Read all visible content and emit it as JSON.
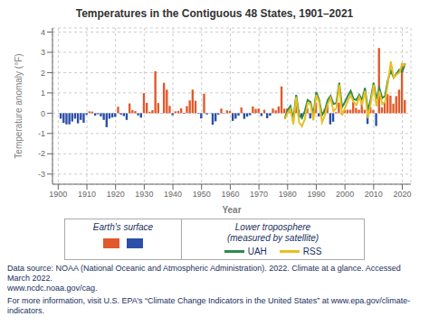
{
  "chart_data": {
    "type": "bar",
    "title": "Temperatures in the Contiguous 48 States, 1901–2021",
    "x_label": "Year",
    "y_label": "Temperature anomaly (°F)",
    "xlim": [
      1898,
      2023
    ],
    "xticks": [
      1900,
      1910,
      1920,
      1930,
      1940,
      1950,
      1960,
      1970,
      1980,
      1990,
      2000,
      2010,
      2020
    ],
    "ylim": [
      -3.5,
      4.2
    ],
    "yticks": [
      -3,
      -2,
      -1,
      0,
      1,
      2,
      3,
      4
    ],
    "grid": true,
    "legend": "bottom",
    "annotations": [
      "Lower troposphere",
      "(measured by satellite)",
      "Data source: NOAA (National Oceanic and Atmospheric Administration). 2022. Climate at a glance. Accessed March 2022.\nwww.ncdc.noaa.gov/cag.",
      "For more information, visit U.S. EPA’s “Climate Change Indicators in the United States” at www.epa.gov/climate-indicators."
    ],
    "series": [
      {
        "name": "Earth's surface",
        "type": "bar",
        "x": [
          1901,
          1902,
          1903,
          1904,
          1905,
          1906,
          1907,
          1908,
          1909,
          1910,
          1911,
          1912,
          1913,
          1914,
          1915,
          1916,
          1917,
          1918,
          1919,
          1920,
          1921,
          1922,
          1923,
          1924,
          1925,
          1926,
          1927,
          1928,
          1929,
          1930,
          1931,
          1932,
          1933,
          1934,
          1935,
          1936,
          1937,
          1938,
          1939,
          1940,
          1941,
          1942,
          1943,
          1944,
          1945,
          1946,
          1947,
          1948,
          1949,
          1950,
          1951,
          1952,
          1953,
          1954,
          1955,
          1956,
          1957,
          1958,
          1959,
          1960,
          1961,
          1962,
          1963,
          1964,
          1965,
          1966,
          1967,
          1968,
          1969,
          1970,
          1971,
          1972,
          1973,
          1974,
          1975,
          1976,
          1977,
          1978,
          1979,
          1980,
          1981,
          1982,
          1983,
          1984,
          1985,
          1986,
          1987,
          1988,
          1989,
          1990,
          1991,
          1992,
          1993,
          1994,
          1995,
          1996,
          1997,
          1998,
          1999,
          2000,
          2001,
          2002,
          2003,
          2004,
          2005,
          2006,
          2007,
          2008,
          2009,
          2010,
          2011,
          2012,
          2013,
          2014,
          2015,
          2016,
          2017,
          2018,
          2019,
          2020,
          2021
        ],
        "values": [
          -0.27,
          -0.48,
          -0.55,
          -0.55,
          -0.41,
          -0.27,
          -0.5,
          -0.33,
          -0.47,
          -0.08,
          0.09,
          0.08,
          -0.12,
          -0.05,
          -0.16,
          -0.33,
          -0.69,
          -0.27,
          -0.21,
          -0.18,
          0.32,
          -0.07,
          -0.14,
          -0.33,
          0.48,
          0.15,
          0.1,
          -0.11,
          -0.22,
          0.99,
          0.51,
          0.07,
          0.15,
          2.07,
          0.5,
          -0.01,
          1.5,
          1.16,
          0.36,
          -0.1,
          0.09,
          0.11,
          0.24,
          -0.03,
          0.35,
          0.63,
          1.16,
          0.61,
          -0.03,
          -0.26,
          0.96,
          -0.06,
          -0.01,
          -0.57,
          -0.4,
          -0.07,
          0.23,
          -0.02,
          0.14,
          0.11,
          -0.38,
          -0.27,
          -0.12,
          0.28,
          -0.28,
          -0.17,
          -0.1,
          0.33,
          0.21,
          0.23,
          -0.14,
          0.17,
          -0.25,
          -0.12,
          0.23,
          0.14,
          0.33,
          1.32,
          0.22,
          0.23,
          0.18,
          -0.27,
          0.56,
          0.15,
          -0.16,
          -0.03,
          0.24,
          -0.26,
          0.2,
          0.51,
          -0.16,
          0.05,
          0.2,
          0.54,
          -0.55,
          -0.42,
          0.05,
          0.52,
          -0.05,
          0.15,
          0.17,
          0.17,
          0.55,
          0.26,
          0.17,
          0.59,
          0.17,
          -0.53,
          0.31,
          0.16,
          -0.63,
          3.21,
          0.29,
          0.52,
          0.94,
          0.87,
          0.47,
          0.84,
          1.16,
          2.45,
          0.65
        ],
        "colors": [
          "#2b4fa8",
          "#2b4fa8",
          "#2b4fa8",
          "#2b4fa8",
          "#2b4fa8",
          "#2b4fa8",
          "#2b4fa8",
          "#2b4fa8",
          "#2b4fa8",
          "#2b4fa8",
          "#e05a2b",
          "#e05a2b",
          "#2b4fa8",
          "#2b4fa8",
          "#2b4fa8",
          "#2b4fa8",
          "#2b4fa8",
          "#2b4fa8",
          "#2b4fa8",
          "#2b4fa8",
          "#e05a2b",
          "#2b4fa8",
          "#2b4fa8",
          "#2b4fa8",
          "#e05a2b",
          "#e05a2b",
          "#e05a2b",
          "#2b4fa8",
          "#2b4fa8",
          "#e05a2b",
          "#e05a2b",
          "#e05a2b",
          "#e05a2b",
          "#e05a2b",
          "#e05a2b",
          "#2b4fa8",
          "#e05a2b",
          "#e05a2b",
          "#e05a2b",
          "#2b4fa8",
          "#e05a2b",
          "#e05a2b",
          "#e05a2b",
          "#2b4fa8",
          "#e05a2b",
          "#e05a2b",
          "#e05a2b",
          "#e05a2b",
          "#2b4fa8",
          "#2b4fa8",
          "#e05a2b",
          "#2b4fa8",
          "#2b4fa8",
          "#2b4fa8",
          "#2b4fa8",
          "#2b4fa8",
          "#e05a2b",
          "#2b4fa8",
          "#e05a2b",
          "#e05a2b",
          "#2b4fa8",
          "#2b4fa8",
          "#2b4fa8",
          "#e05a2b",
          "#2b4fa8",
          "#2b4fa8",
          "#2b4fa8",
          "#e05a2b",
          "#e05a2b",
          "#e05a2b",
          "#2b4fa8",
          "#e05a2b",
          "#2b4fa8",
          "#2b4fa8",
          "#e05a2b",
          "#e05a2b",
          "#e05a2b",
          "#e05a2b",
          "#e05a2b",
          "#e05a2b",
          "#e05a2b",
          "#2b4fa8",
          "#e05a2b",
          "#e05a2b",
          "#2b4fa8",
          "#2b4fa8",
          "#e05a2b",
          "#2b4fa8",
          "#e05a2b",
          "#e05a2b",
          "#2b4fa8",
          "#e05a2b",
          "#e05a2b",
          "#e05a2b",
          "#2b4fa8",
          "#2b4fa8",
          "#e05a2b",
          "#e05a2b",
          "#2b4fa8",
          "#e05a2b",
          "#e05a2b",
          "#e05a2b",
          "#e05a2b",
          "#e05a2b",
          "#e05a2b",
          "#e05a2b",
          "#e05a2b",
          "#2b4fa8",
          "#e05a2b",
          "#e05a2b",
          "#2b4fa8",
          "#e05a2b",
          "#e05a2b",
          "#e05a2b",
          "#e05a2b",
          "#e05a2b",
          "#e05a2b",
          "#e05a2b",
          "#e05a2b",
          "#e05a2b",
          "#e05a2b"
        ]
      },
      {
        "name": "UAH",
        "type": "line",
        "color": "#2d8a4e",
        "x": [
          1979,
          1980,
          1981,
          1982,
          1983,
          1984,
          1985,
          1986,
          1987,
          1988,
          1989,
          1990,
          1991,
          1992,
          1993,
          1994,
          1995,
          1996,
          1997,
          1998,
          1999,
          2000,
          2001,
          2002,
          2003,
          2004,
          2005,
          2006,
          2007,
          2008,
          2009,
          2010,
          2011,
          2012,
          2013,
          2014,
          2015,
          2016,
          2017,
          2018,
          2019,
          2020,
          2021
        ],
        "values": [
          -0.25,
          0.15,
          0.35,
          -0.3,
          0.9,
          -0.1,
          -0.25,
          0.1,
          0.65,
          0.55,
          -0.1,
          1.05,
          0.65,
          -0.1,
          0.15,
          0.65,
          0.85,
          0.45,
          0.5,
          1.5,
          0.3,
          0.55,
          0.85,
          1.1,
          0.7,
          0.65,
          0.9,
          0.65,
          1.25,
          0.1,
          0.7,
          1.5,
          0.7,
          1.25,
          0.75,
          0.85,
          1.65,
          2.1,
          1.75,
          1.95,
          2.15,
          2.05,
          2.45
        ]
      },
      {
        "name": "RSS",
        "type": "line",
        "color": "#e8c020",
        "x": [
          1979,
          1980,
          1981,
          1982,
          1983,
          1984,
          1985,
          1986,
          1987,
          1988,
          1989,
          1990,
          1991,
          1992,
          1993,
          1994,
          1995,
          1996,
          1997,
          1998,
          1999,
          2000,
          2001,
          2002,
          2003,
          2004,
          2005,
          2006,
          2007,
          2008,
          2009,
          2010,
          2011,
          2012,
          2013,
          2014,
          2015,
          2016,
          2017,
          2018,
          2019,
          2020,
          2021
        ],
        "values": [
          -0.3,
          0.0,
          0.2,
          -0.55,
          0.8,
          -0.45,
          -0.65,
          -0.3,
          0.5,
          0.45,
          -0.35,
          0.9,
          0.55,
          -0.45,
          -0.1,
          0.45,
          0.75,
          0.1,
          0.25,
          1.4,
          -0.1,
          0.25,
          0.6,
          0.9,
          0.55,
          0.4,
          0.8,
          0.45,
          1.1,
          -0.25,
          0.5,
          1.4,
          0.35,
          1.1,
          0.45,
          0.55,
          1.5,
          2.55,
          1.75,
          1.9,
          2.0,
          2.45,
          2.35
        ]
      }
    ]
  }
}
